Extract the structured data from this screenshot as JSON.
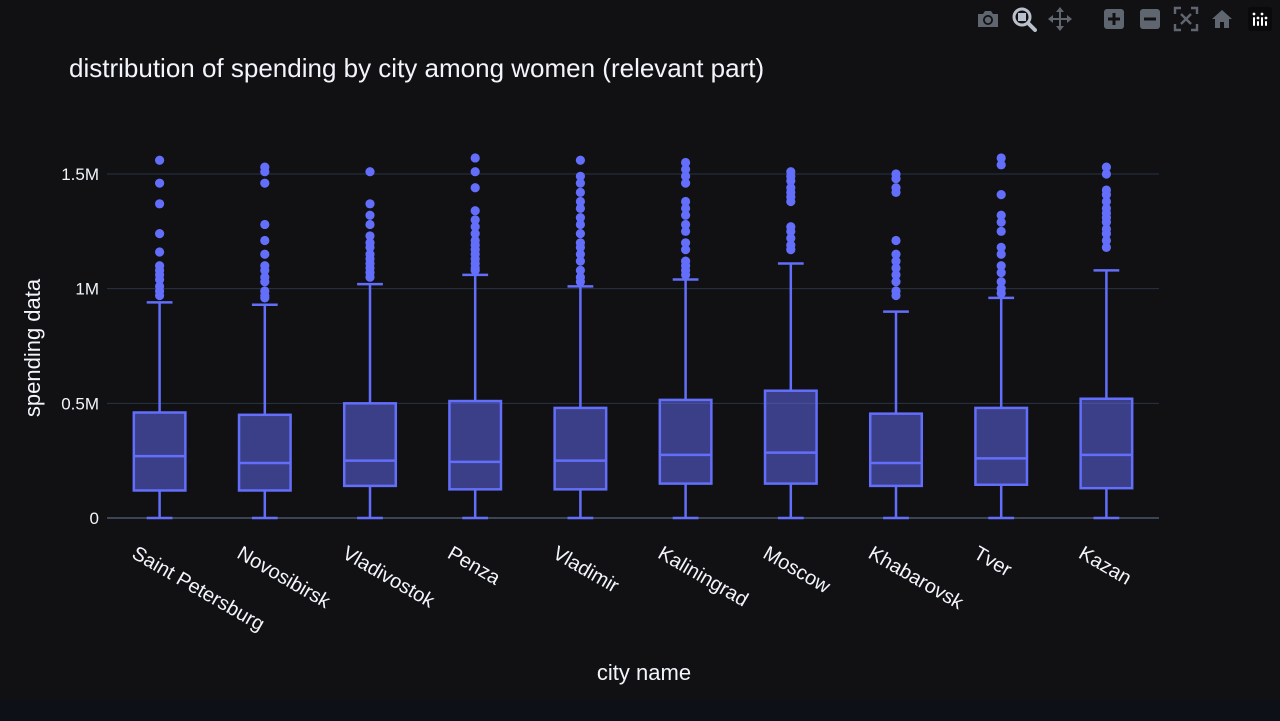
{
  "modebar": {
    "buttons": [
      {
        "name": "camera-icon"
      },
      {
        "name": "zoom-icon"
      },
      {
        "name": "pan-icon"
      },
      {
        "name": "zoom-in-icon"
      },
      {
        "name": "zoom-out-icon"
      },
      {
        "name": "autoscale-icon"
      },
      {
        "name": "home-icon"
      },
      {
        "name": "plotly-logo-icon"
      }
    ]
  },
  "colors": {
    "background": "#111114",
    "box": "#636efa",
    "box_fill": "rgba(99,110,250,0.5)",
    "grid": "#283442",
    "text": "#f2f5fa"
  },
  "chart_data": {
    "type": "box",
    "title": "distribution of spending by city among women (relevant part)",
    "xlabel": "city name",
    "ylabel": "spending data",
    "ylim": [
      0,
      1600000
    ],
    "y_ticks": [
      {
        "value": 0,
        "label": "0"
      },
      {
        "value": 500000,
        "label": "0.5M"
      },
      {
        "value": 1000000,
        "label": "1M"
      },
      {
        "value": 1500000,
        "label": "1.5M"
      }
    ],
    "grid": true,
    "categories": [
      "Saint Petersburg",
      "Novosibirsk",
      "Vladivostok",
      "Penza",
      "Vladimir",
      "Kaliningrad",
      "Moscow",
      "Khabarovsk",
      "Tver",
      "Kazan"
    ],
    "boxes": [
      {
        "min": 0,
        "q1": 120000,
        "median": 270000,
        "q3": 460000,
        "max": 940000,
        "outliers": [
          1560000,
          1460000,
          1370000,
          1240000,
          1160000,
          1100000,
          1080000,
          1060000,
          1040000,
          1010000,
          990000,
          970000
        ]
      },
      {
        "min": 0,
        "q1": 120000,
        "median": 240000,
        "q3": 450000,
        "max": 930000,
        "outliers": [
          1580000,
          1530000,
          1510000,
          1460000,
          1280000,
          1210000,
          1150000,
          1100000,
          1080000,
          1050000,
          1030000,
          990000,
          970000,
          960000
        ]
      },
      {
        "min": 0,
        "q1": 140000,
        "median": 250000,
        "q3": 500000,
        "max": 1020000,
        "outliers": [
          1580000,
          1510000,
          1370000,
          1320000,
          1280000,
          1230000,
          1200000,
          1180000,
          1150000,
          1130000,
          1110000,
          1090000,
          1070000,
          1050000
        ]
      },
      {
        "min": 0,
        "q1": 125000,
        "median": 245000,
        "q3": 510000,
        "max": 1060000,
        "outliers": [
          1570000,
          1510000,
          1440000,
          1340000,
          1300000,
          1270000,
          1240000,
          1210000,
          1190000,
          1170000,
          1150000,
          1130000,
          1110000,
          1090000,
          1080000
        ]
      },
      {
        "min": 0,
        "q1": 125000,
        "median": 250000,
        "q3": 480000,
        "max": 1010000,
        "outliers": [
          1560000,
          1490000,
          1460000,
          1420000,
          1380000,
          1350000,
          1310000,
          1280000,
          1240000,
          1200000,
          1180000,
          1150000,
          1120000,
          1080000,
          1050000,
          1030000
        ]
      },
      {
        "min": 0,
        "q1": 150000,
        "median": 275000,
        "q3": 515000,
        "max": 1040000,
        "outliers": [
          1550000,
          1520000,
          1490000,
          1460000,
          1380000,
          1350000,
          1320000,
          1280000,
          1250000,
          1200000,
          1170000,
          1120000,
          1100000,
          1080000,
          1060000
        ]
      },
      {
        "min": 0,
        "q1": 150000,
        "median": 285000,
        "q3": 555000,
        "max": 1110000,
        "outliers": [
          1510000,
          1490000,
          1470000,
          1440000,
          1420000,
          1400000,
          1380000,
          1270000,
          1250000,
          1220000,
          1190000,
          1170000
        ]
      },
      {
        "min": 0,
        "q1": 140000,
        "median": 240000,
        "q3": 455000,
        "max": 900000,
        "outliers": [
          1500000,
          1480000,
          1440000,
          1420000,
          1210000,
          1150000,
          1120000,
          1090000,
          1060000,
          1030000,
          990000,
          970000
        ]
      },
      {
        "min": 0,
        "q1": 145000,
        "median": 260000,
        "q3": 480000,
        "max": 960000,
        "outliers": [
          1570000,
          1540000,
          1410000,
          1320000,
          1290000,
          1250000,
          1180000,
          1150000,
          1100000,
          1070000,
          1030000,
          1000000,
          980000
        ]
      },
      {
        "min": 0,
        "q1": 130000,
        "median": 275000,
        "q3": 520000,
        "max": 1080000,
        "outliers": [
          1580000,
          1530000,
          1500000,
          1430000,
          1410000,
          1380000,
          1350000,
          1330000,
          1310000,
          1290000,
          1260000,
          1240000,
          1210000,
          1180000
        ]
      }
    ]
  }
}
